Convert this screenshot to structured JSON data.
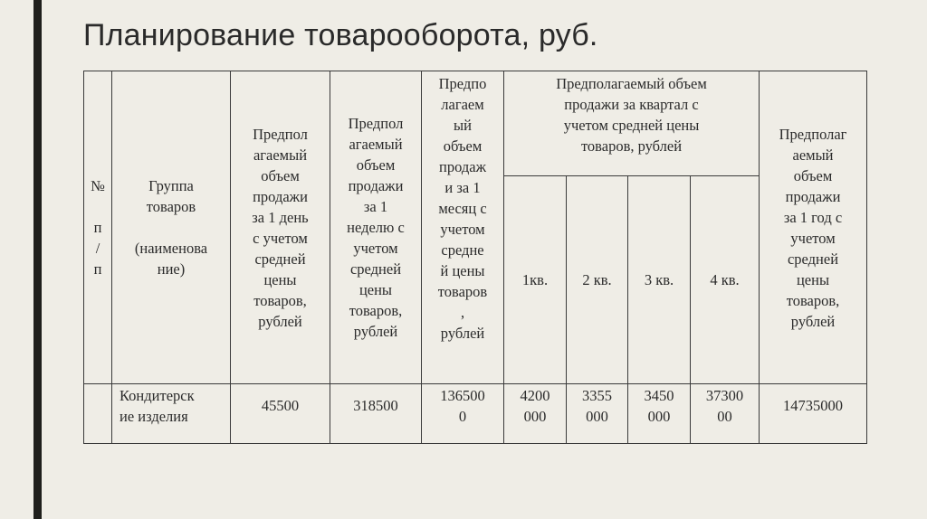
{
  "title": "Планирование товарооборота, руб.",
  "table": {
    "headers": {
      "num": "№\n\nп\n/\nп",
      "group": "Группа\nтоваров\n\n(наименова\nние)",
      "day": "Предпол\nагаемый\nобъем\nпродажи\nза 1 день\nс учетом\nсредней\nцены\nтоваров,\nрублей",
      "week": "Предпол\nагаемый\nобъем\nпродажи\nза 1\nнеделю с\nучетом\nсредней\nцены\nтоваров,\nрублей",
      "month": "Предпо\nлагаем\nый\nобъем\nпродаж\nи за 1\nмесяц с\nучетом\nсредне\nй цены\nтоваров\n,\nрублей",
      "quarter_group": "Предполагаемый объем\nпродажи за квартал с\nучетом средней цены\nтоваров, рублей",
      "quarters": [
        "1кв.",
        "2 кв.",
        "3 кв.",
        "4 кв."
      ],
      "year": "Предполаг\nаемый\nобъем\nпродажи\nза 1 год с\nучетом\nсредней\nцены\nтоваров,\nрублей"
    },
    "rows": [
      {
        "num": "",
        "group": "Кондитерск\nие изделия",
        "day": "45500",
        "week": "318500",
        "month": "136500\n0",
        "quarters": [
          "4200\n000",
          "3355\n000",
          "3450\n000",
          "37300\n00"
        ],
        "year": "14735000"
      }
    ]
  }
}
